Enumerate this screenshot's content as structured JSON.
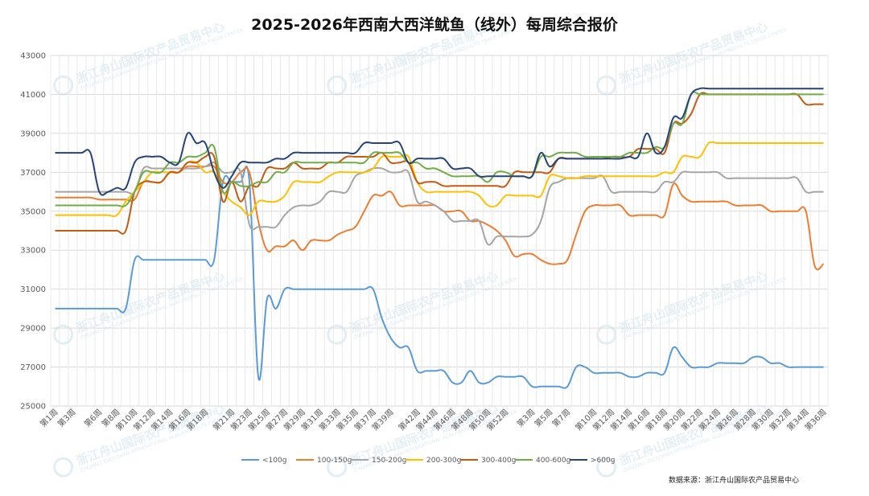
{
  "chart_data": {
    "type": "line",
    "title": "2025-2026年西南大西洋鱿鱼（线外）每周综合报价",
    "ylim": [
      25000,
      43000
    ],
    "yticks": [
      25000,
      27000,
      29000,
      31000,
      33000,
      35000,
      37000,
      39000,
      41000,
      43000
    ],
    "x": [
      "第1周",
      "第2周",
      "第3周",
      "第4周",
      "第5周",
      "第6周",
      "第7周",
      "第8周",
      "第9周",
      "第10周",
      "第11周",
      "第12周",
      "第13周",
      "第14周",
      "第15周",
      "第16周",
      "第17周",
      "第18周",
      "第19周",
      "第20周",
      "第21周",
      "第22周",
      "第23周",
      "第24周",
      "第25周",
      "第26周",
      "第27周",
      "第28周",
      "第29周",
      "第30周",
      "第31周",
      "第32周",
      "第33周",
      "第34周",
      "第35周",
      "第36周",
      "第37周",
      "第38周",
      "第39周",
      "第40周",
      "第41周",
      "第42周",
      "第43周",
      "第44周",
      "第45周",
      "第46周",
      "第47周",
      "第48周",
      "第49周",
      "第50周",
      "第51周",
      "第52周",
      "第1周",
      "第2周",
      "第3周",
      "第4周",
      "第5周",
      "第6周",
      "第7周",
      "第8周",
      "第9周",
      "第10周",
      "第11周",
      "第12周",
      "第13周",
      "第14周",
      "第15周",
      "第16周",
      "第17周",
      "第18周",
      "第19周",
      "第20周",
      "第21周",
      "第22周",
      "第23周",
      "第24周",
      "第25周",
      "第26周",
      "第27周",
      "第28周",
      "第29周",
      "第30周",
      "第31周",
      "第32周",
      "第33周",
      "第34周",
      "第35周",
      "第36周"
    ],
    "x_tick_labels": [
      "第1周",
      "第3周",
      "第6周",
      "第8周",
      "第10周",
      "第12周",
      "第14周",
      "第16周",
      "第18周",
      "第21周",
      "第23周",
      "第25周",
      "第27周",
      "第29周",
      "第31周",
      "第33周",
      "第35周",
      "第37周",
      "第39周",
      "第42周",
      "第44周",
      "第46周",
      "第48周",
      "第50周",
      "第52周",
      "第3周",
      "第5周",
      "第7周",
      "第10周",
      "第12周",
      "第14周",
      "第16周",
      "第18周",
      "第20周",
      "第22周",
      "第24周",
      "第26周",
      "第28周",
      "第30周",
      "第32周",
      "第34周",
      "第36周"
    ],
    "x_tick_positions": [
      0,
      2,
      5,
      7,
      9,
      11,
      13,
      15,
      17,
      20,
      22,
      24,
      26,
      28,
      30,
      32,
      34,
      36,
      38,
      41,
      43,
      45,
      47,
      49,
      51,
      54,
      56,
      58,
      61,
      63,
      65,
      67,
      69,
      71,
      73,
      75,
      77,
      79,
      81,
      83,
      85,
      87
    ],
    "grid": true,
    "legend": "bottom",
    "series": [
      {
        "name": "<100g",
        "color": "#5B9BD5",
        "values": [
          30000,
          30000,
          30000,
          30000,
          30000,
          30000,
          30000,
          30000,
          30000,
          32500,
          32500,
          32500,
          32500,
          32500,
          32500,
          32500,
          32500,
          32500,
          32500,
          36500,
          36500,
          36500,
          36500,
          26500,
          30500,
          30000,
          31000,
          31000,
          31000,
          31000,
          31000,
          31000,
          31000,
          31000,
          31000,
          31000,
          31000,
          29500,
          28500,
          28000,
          28000,
          26800,
          26800,
          26800,
          26800,
          26200,
          26200,
          26800,
          26200,
          26200,
          26500,
          26500,
          26500,
          26500,
          26000,
          26000,
          26000,
          26000,
          26000,
          27000,
          27000,
          26700,
          26700,
          26700,
          26700,
          26500,
          26500,
          26700,
          26700,
          26700,
          28000,
          27500,
          27000,
          27000,
          27000,
          27200,
          27200,
          27200,
          27200,
          27500,
          27500,
          27200,
          27200,
          27000,
          27000,
          27000,
          27000,
          27000
        ]
      },
      {
        "name": "100-150g",
        "color": "#ED7D31",
        "values": [
          35700,
          35700,
          35700,
          35700,
          35700,
          35600,
          35600,
          35600,
          35600,
          35600,
          36500,
          36500,
          36500,
          37000,
          37000,
          37300,
          37300,
          37300,
          37300,
          36500,
          36500,
          37000,
          37000,
          34500,
          33000,
          33200,
          33200,
          33500,
          33000,
          33500,
          33500,
          33500,
          33800,
          34000,
          34200,
          35000,
          35800,
          35800,
          36000,
          35300,
          35300,
          35300,
          35300,
          35300,
          35000,
          35000,
          35000,
          34500,
          34500,
          34300,
          34000,
          33500,
          32700,
          32800,
          32800,
          32500,
          32300,
          32300,
          32500,
          33800,
          35000,
          35300,
          35300,
          35300,
          35300,
          34800,
          34800,
          34800,
          34800,
          34800,
          36400,
          35800,
          35500,
          35500,
          35500,
          35500,
          35500,
          35300,
          35300,
          35300,
          35300,
          35000,
          35000,
          35000,
          35000,
          35000,
          32200,
          32300
        ]
      },
      {
        "name": "150-200g",
        "color": "#A5A5A5",
        "values": [
          36000,
          36000,
          36000,
          36000,
          36000,
          36000,
          36000,
          36000,
          36000,
          36000,
          37200,
          37200,
          37200,
          37200,
          37200,
          37200,
          37200,
          37300,
          37500,
          37000,
          37000,
          37000,
          34300,
          34200,
          34200,
          34200,
          34800,
          35200,
          35300,
          35300,
          35500,
          36000,
          36000,
          36000,
          36800,
          37000,
          37200,
          37200,
          37000,
          37000,
          37000,
          35500,
          35500,
          35300,
          35000,
          34500,
          34500,
          34500,
          34500,
          33300,
          33700,
          33700,
          33700,
          33700,
          33800,
          34500,
          36200,
          36500,
          36700,
          36700,
          36700,
          36700,
          36800,
          36000,
          36000,
          36000,
          36000,
          36000,
          36000,
          36500,
          36500,
          37000,
          37000,
          37000,
          37000,
          37000,
          36700,
          36700,
          36700,
          36700,
          36700,
          36700,
          36700,
          36700,
          36700,
          36000,
          36000,
          36000
        ]
      },
      {
        "name": "200-300g",
        "color": "#FFC000",
        "values": [
          34800,
          34800,
          34800,
          34800,
          34800,
          34800,
          34800,
          34800,
          35500,
          36000,
          36500,
          37000,
          37000,
          37000,
          37000,
          37500,
          37500,
          37000,
          37000,
          36000,
          35500,
          35200,
          34800,
          35500,
          35500,
          35500,
          35800,
          36500,
          36500,
          36500,
          36500,
          36800,
          37000,
          37000,
          37000,
          37000,
          37200,
          37800,
          37800,
          37800,
          37800,
          36500,
          36000,
          36000,
          36000,
          36000,
          36000,
          36000,
          35800,
          35300,
          35300,
          35800,
          35800,
          35800,
          35800,
          35800,
          36800,
          36800,
          36700,
          36700,
          36800,
          36800,
          36800,
          36800,
          36800,
          36800,
          36800,
          36800,
          36800,
          37000,
          37000,
          37800,
          37800,
          37800,
          38500,
          38500,
          38500,
          38500,
          38500,
          38500,
          38500,
          38500,
          38500,
          38500,
          38500,
          38500,
          38500,
          38500
        ]
      },
      {
        "name": "300-400g",
        "color": "#C55A11",
        "values": [
          34000,
          34000,
          34000,
          34000,
          34000,
          34000,
          34000,
          34000,
          34000,
          36000,
          36500,
          36500,
          36500,
          37000,
          37000,
          37500,
          37500,
          37800,
          37800,
          35500,
          36500,
          35500,
          36300,
          36300,
          37200,
          37200,
          37200,
          37500,
          37200,
          37200,
          37200,
          37500,
          37500,
          37800,
          37800,
          37800,
          37800,
          38000,
          37500,
          37500,
          37500,
          36500,
          36500,
          36500,
          36300,
          36300,
          36300,
          36300,
          36300,
          36300,
          36300,
          36300,
          37000,
          37000,
          37000,
          37000,
          37000,
          37700,
          37700,
          37700,
          37700,
          37700,
          37700,
          37800,
          37800,
          37800,
          38200,
          38200,
          38200,
          38000,
          39500,
          39500,
          40000,
          41000,
          41000,
          41000,
          41000,
          41000,
          41000,
          41000,
          41000,
          41000,
          41000,
          41000,
          41000,
          40500,
          40500,
          40500
        ]
      },
      {
        "name": "400-600g",
        "color": "#70AD47",
        "values": [
          35300,
          35300,
          35300,
          35300,
          35300,
          35300,
          35300,
          35300,
          35300,
          36000,
          37000,
          37000,
          37000,
          37500,
          37500,
          37800,
          37800,
          38000,
          38300,
          36000,
          36500,
          36300,
          36300,
          36500,
          36500,
          37000,
          37000,
          37500,
          37500,
          37500,
          37500,
          37500,
          37500,
          37500,
          37500,
          37500,
          38000,
          38000,
          38000,
          38000,
          37500,
          37500,
          37200,
          37200,
          37000,
          36800,
          36800,
          36800,
          36800,
          36500,
          37000,
          37000,
          36800,
          36800,
          36800,
          37800,
          37800,
          38000,
          38000,
          38000,
          37800,
          37800,
          37800,
          37800,
          37800,
          38000,
          38000,
          38000,
          38300,
          38300,
          39500,
          39500,
          41000,
          41000,
          41000,
          41000,
          41000,
          41000,
          41000,
          41000,
          41000,
          41000,
          41000,
          41000,
          41000,
          41000,
          41000,
          41000
        ]
      },
      {
        "name": ">600g",
        "color": "#264478",
        "values": [
          38000,
          38000,
          38000,
          38000,
          38000,
          36000,
          36000,
          36200,
          36200,
          37500,
          37800,
          37800,
          37800,
          37500,
          37500,
          39000,
          38500,
          38500,
          37000,
          36200,
          36800,
          37500,
          37500,
          37500,
          37500,
          37700,
          37700,
          38000,
          38000,
          38000,
          38000,
          38000,
          38000,
          38000,
          38000,
          38500,
          38500,
          38500,
          38500,
          38500,
          37500,
          37700,
          37700,
          37700,
          37700,
          37200,
          37200,
          37200,
          36800,
          36800,
          36800,
          36800,
          36800,
          36800,
          36800,
          38000,
          37300,
          37700,
          37700,
          37700,
          37700,
          37700,
          37700,
          37700,
          37700,
          37800,
          37800,
          39000,
          38000,
          38300,
          39800,
          39800,
          41000,
          41300,
          41300,
          41300,
          41300,
          41300,
          41300,
          41300,
          41300,
          41300,
          41300,
          41300,
          41300,
          41300,
          41300,
          41300
        ]
      }
    ]
  },
  "watermark": {
    "text": "浙江舟山国际农产品贸易中心",
    "subtext": "ZHEJIANG ZHOUSHAN INTERNATIONAL AGRI-PRODUCTS TRADE CENTER"
  },
  "source": "数据来源：浙江舟山国际农产品贸易中心",
  "colors": {
    "grid": "#D9D9D9",
    "axis_text": "#595959"
  }
}
